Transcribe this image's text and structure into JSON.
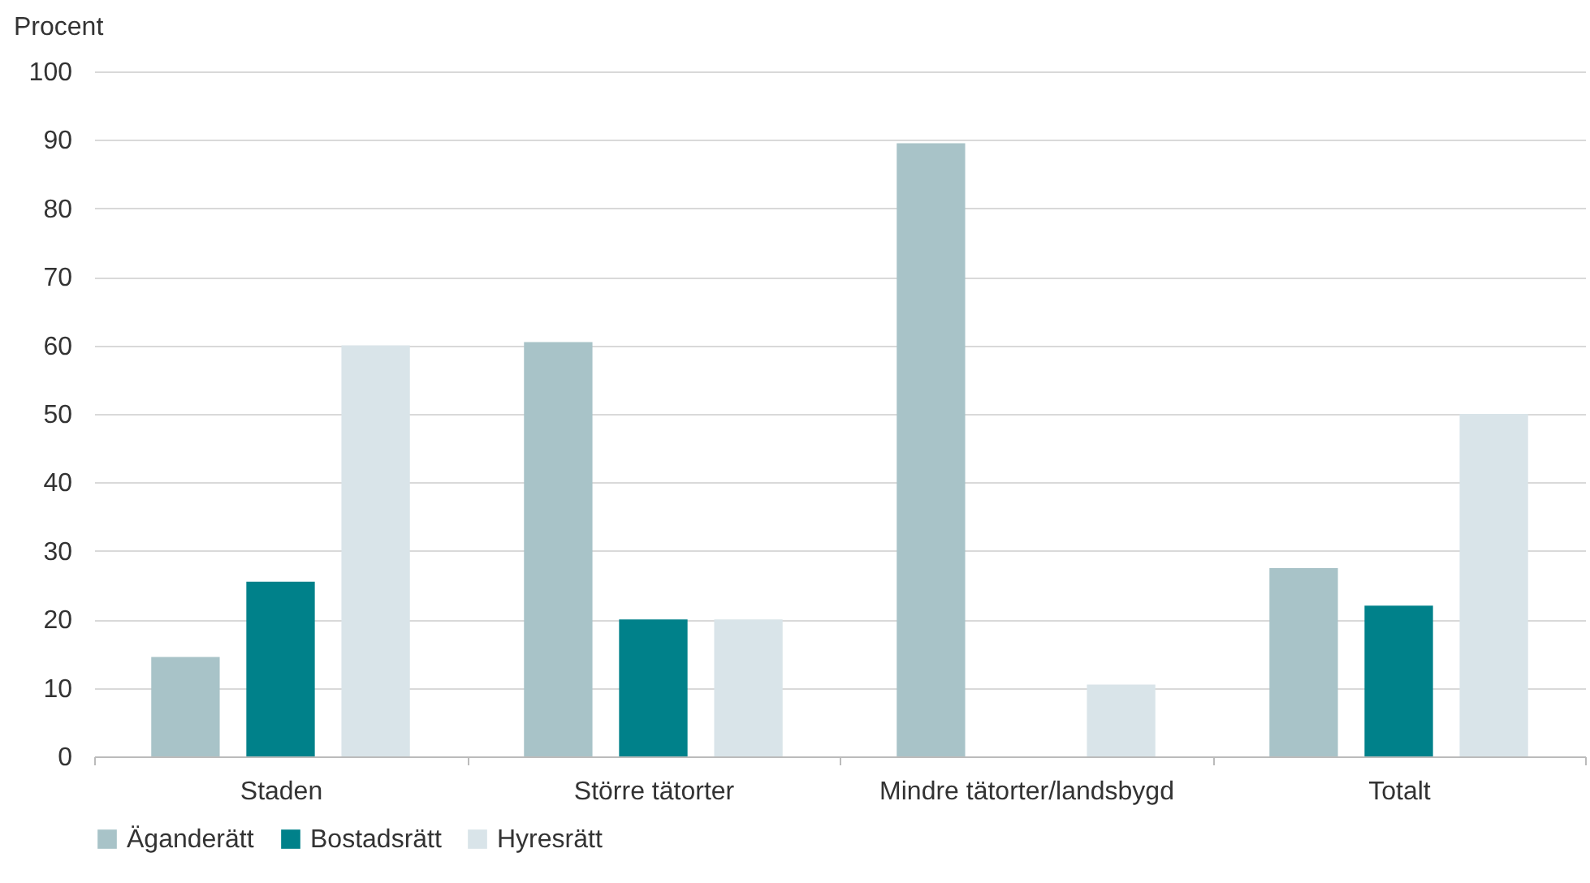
{
  "chart_data": {
    "type": "bar",
    "ylabel": "Procent",
    "categories": [
      "Staden",
      "Större tätorter",
      "Mindre tätorter/landsbygd",
      "Totalt"
    ],
    "series": [
      {
        "name": "Äganderätt",
        "color": "#a8c3c8",
        "values": [
          14.5,
          60.5,
          89.5,
          27.5
        ]
      },
      {
        "name": "Bostadsrätt",
        "color": "#00818a",
        "values": [
          25.5,
          20,
          0,
          22
        ]
      },
      {
        "name": "Hyresrätt",
        "color": "#d9e4e9",
        "values": [
          60,
          20,
          10.5,
          50
        ]
      }
    ],
    "ylim": [
      0,
      100
    ],
    "yticks": [
      0,
      10,
      20,
      30,
      40,
      50,
      60,
      70,
      80,
      90,
      100
    ],
    "grid": "y",
    "legend": "bottom"
  }
}
